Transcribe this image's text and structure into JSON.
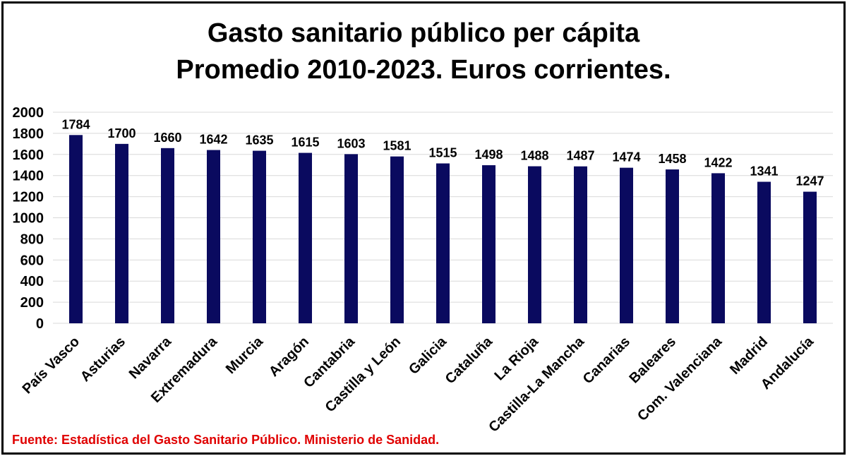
{
  "chart_data": {
    "type": "bar",
    "title": [
      "Gasto sanitario público per cápita",
      "Promedio 2010-2023. Euros corrientes."
    ],
    "categories": [
      "País Vasco",
      "Asturias",
      "Navarra",
      "Extremadura",
      "Murcia",
      "Aragón",
      "Cantabria",
      "Castilla y León",
      "Galicia",
      "Cataluña",
      "La Rioja",
      "Castilla-La Mancha",
      "Canarias",
      "Baleares",
      "Com. Valenciana",
      "Madrid",
      "Andalucía"
    ],
    "values": [
      1784,
      1700,
      1660,
      1642,
      1635,
      1615,
      1603,
      1581,
      1515,
      1498,
      1488,
      1487,
      1474,
      1458,
      1422,
      1341,
      1247
    ],
    "data_labels": [
      "1784",
      "1700",
      "1660",
      "1642",
      "1635",
      "1615",
      "1603",
      "1581",
      "1515",
      "1498",
      "1488",
      "1487",
      "1474",
      "1458",
      "1422",
      "1341",
      "1247"
    ],
    "yticks": [
      "0",
      "200",
      "400",
      "600",
      "800",
      "1000",
      "1200",
      "1400",
      "1600",
      "1800",
      "2000"
    ],
    "ylim": [
      0,
      2000
    ],
    "grid": true,
    "legend": "none",
    "bar_color": "#0a0a5f",
    "grid_color": "#d9d9d9"
  },
  "source_note": "Fuente: Estadística del Gasto Sanitario Público.  Ministerio de Sanidad."
}
